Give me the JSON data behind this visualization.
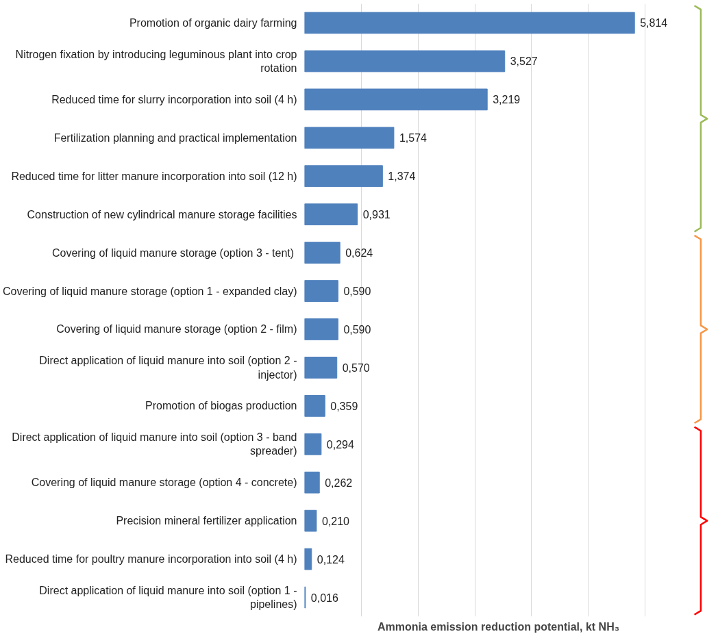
{
  "chart_data": {
    "type": "bar",
    "orientation": "horizontal",
    "xlabel": "Ammonia emission reduction potential, kt NH₃",
    "categories": [
      "Promotion of organic dairy farming",
      "Nitrogen fixation by introducing leguminous plant into crop rotation",
      "Reduced time for slurry incorporation into soil (4 h)",
      "Fertilization planning and practical implementation",
      "Reduced time for litter manure incorporation into soil (12 h)",
      "Construction of new cylindrical manure storage facilities",
      "Covering of liquid manure storage  (option 3 - tent)",
      "Covering of liquid manure storage (option 1 - expanded clay)",
      "Covering of liquid manure storage (option 2 - film)",
      "Direct application of liquid manure into soil (option 2 - injector)",
      "Promotion of biogas production",
      "Direct application of liquid manure into soil (option 3 - band spreader)",
      "Covering of liquid manure storage (option 4 - concrete)",
      "Precision mineral fertilizer application",
      "Reduced time for poultry manure incorporation into soil (4 h)",
      "Direct application of liquid manure into soil (option 1 - pipelines)"
    ],
    "values": [
      5.814,
      3.527,
      3.219,
      1.574,
      1.374,
      0.931,
      0.624,
      0.59,
      0.59,
      0.57,
      0.359,
      0.294,
      0.262,
      0.21,
      0.124,
      0.016
    ],
    "value_labels": [
      "5,814",
      "3,527",
      "3,219",
      "1,574",
      "1,374",
      "0,931",
      "0,624",
      "0,590",
      "0,590",
      "0,570",
      "0,359",
      "0,294",
      "0,262",
      "0,210",
      "0,124",
      "0,016"
    ],
    "color": "#4f81bd",
    "grid": "x",
    "tick_labels": "y"
  }
}
